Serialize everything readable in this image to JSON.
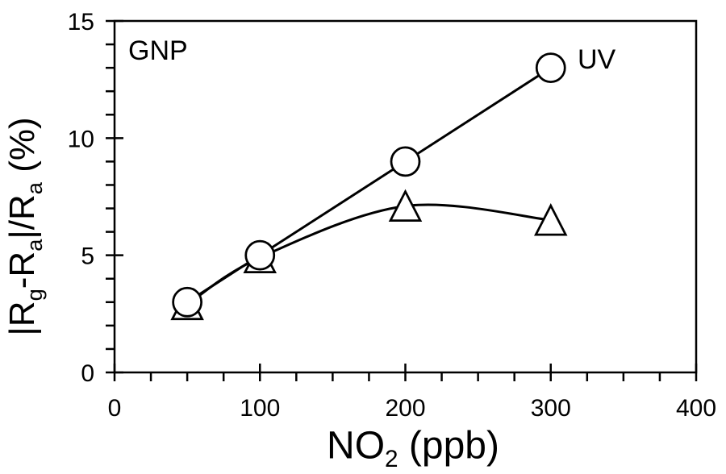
{
  "chart_data": {
    "type": "line",
    "title": "",
    "xlabel": "NO2 (ppb)",
    "ylabel": "|Rg-Ra|/Ra (%)",
    "x": [
      50,
      100,
      200,
      300
    ],
    "series": [
      {
        "name": "UV",
        "label": "UV",
        "marker": "circle",
        "line_style": "straight",
        "values": [
          3,
          5,
          9,
          13
        ]
      },
      {
        "name": "triangle",
        "label": "",
        "marker": "triangle",
        "line_style": "smooth",
        "values": [
          2.9,
          4.9,
          7.1,
          6.5
        ]
      }
    ],
    "axes": {
      "x": {
        "min": 0,
        "max": 400,
        "major_ticks": [
          0,
          100,
          200,
          300,
          400
        ],
        "minor_step": 25
      },
      "y": {
        "min": 0,
        "max": 15,
        "major_ticks": [
          0,
          5,
          10,
          15
        ],
        "minor_step": 1
      }
    },
    "annotations": [
      {
        "text": "GNP",
        "role": "panel-label"
      },
      {
        "text": "UV",
        "role": "series-label"
      }
    ],
    "grid": false,
    "legend_position": "none"
  },
  "labels": {
    "gnp": "GNP",
    "uv": "UV",
    "xlabel_pre": "NO",
    "xlabel_sub": "2",
    "xlabel_post": " (ppb)",
    "ylabel_p1": "|R",
    "ylabel_s1": "g",
    "ylabel_p2": "-R",
    "ylabel_s2": "a",
    "ylabel_p3": "|/R",
    "ylabel_s3": "a",
    "ylabel_p4": " (%)"
  },
  "colors": {
    "foreground": "#000000",
    "background": "#ffffff",
    "marker_fill": "#ffffff"
  }
}
